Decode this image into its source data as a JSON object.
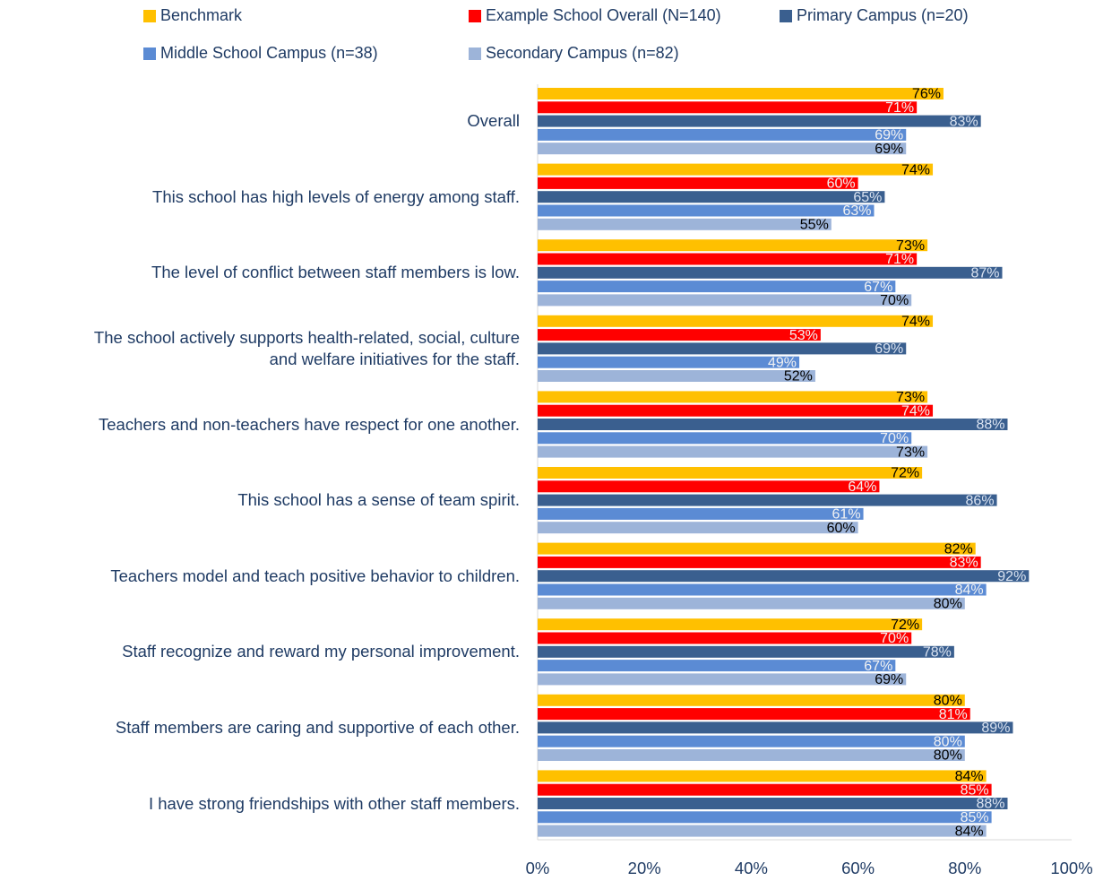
{
  "chart_data": {
    "type": "bar",
    "orientation": "horizontal",
    "categories": [
      "Overall",
      "This school has high levels of energy among staff.",
      "The level of conflict between staff members is low.",
      "The school actively supports health-related, social, culture\nand welfare initiatives for the staff.",
      "Teachers and non-teachers have respect for one another.",
      "This school has a sense of team spirit.",
      "Teachers model and teach positive behavior to children.",
      "Staff recognize and reward my personal improvement.",
      "Staff members are caring and supportive of each other.",
      "I have strong friendships with other staff members."
    ],
    "series": [
      {
        "name": "Benchmark",
        "color": "#FFC000",
        "label_color": "#000000",
        "values": [
          76,
          74,
          73,
          74,
          73,
          72,
          82,
          72,
          80,
          84
        ],
        "value_labels": [
          "76%",
          "74%",
          "73%",
          "74%",
          "73%",
          "72%",
          "82%",
          "72%",
          "80%",
          "84%"
        ]
      },
      {
        "name": "Example School Overall (N=140)",
        "color": "#FF0000",
        "label_color": "#F2F2F2",
        "values": [
          71,
          60,
          71,
          53,
          74,
          64,
          83,
          70,
          81,
          85
        ],
        "value_labels": [
          "71%",
          "60%",
          "71%",
          "53%",
          "74%",
          "64%",
          "83%",
          "70%",
          "81%",
          "85%"
        ]
      },
      {
        "name": "Primary Campus (n=20)",
        "color": "#3A5F8F",
        "label_color": "#D9E2F0",
        "values": [
          83,
          65,
          87,
          69,
          88,
          86,
          92,
          78,
          89,
          88
        ],
        "value_labels": [
          "83%",
          "65%",
          "87%",
          "69%",
          "88%",
          "86%",
          "92%",
          "78%",
          "89%",
          "88%"
        ]
      },
      {
        "name": "Middle School Campus (n=38)",
        "color": "#5B8BD4",
        "label_color": "#F2F2F2",
        "values": [
          69,
          63,
          67,
          49,
          70,
          61,
          84,
          67,
          80,
          85
        ],
        "value_labels": [
          "69%",
          "63%",
          "67%",
          "49%",
          "70%",
          "61%",
          "84%",
          "67%",
          "80%",
          "85%"
        ]
      },
      {
        "name": "Secondary Campus (n=82)",
        "color": "#9DB4D9",
        "label_color": "#000000",
        "values": [
          69,
          55,
          70,
          52,
          73,
          60,
          80,
          69,
          80,
          84
        ],
        "value_labels": [
          "69%",
          "55%",
          "70%",
          "52%",
          "73%",
          "60%",
          "80%",
          "69%",
          "80%",
          "84%"
        ]
      }
    ],
    "xlim": [
      0,
      100
    ],
    "xticks": [
      {
        "value": 0,
        "label": "0%"
      },
      {
        "value": 20,
        "label": "20%"
      },
      {
        "value": 40,
        "label": "40%"
      },
      {
        "value": 60,
        "label": "60%"
      },
      {
        "value": 80,
        "label": "80%"
      },
      {
        "value": 100,
        "label": "100%"
      }
    ],
    "grid": false,
    "legend": "top"
  }
}
